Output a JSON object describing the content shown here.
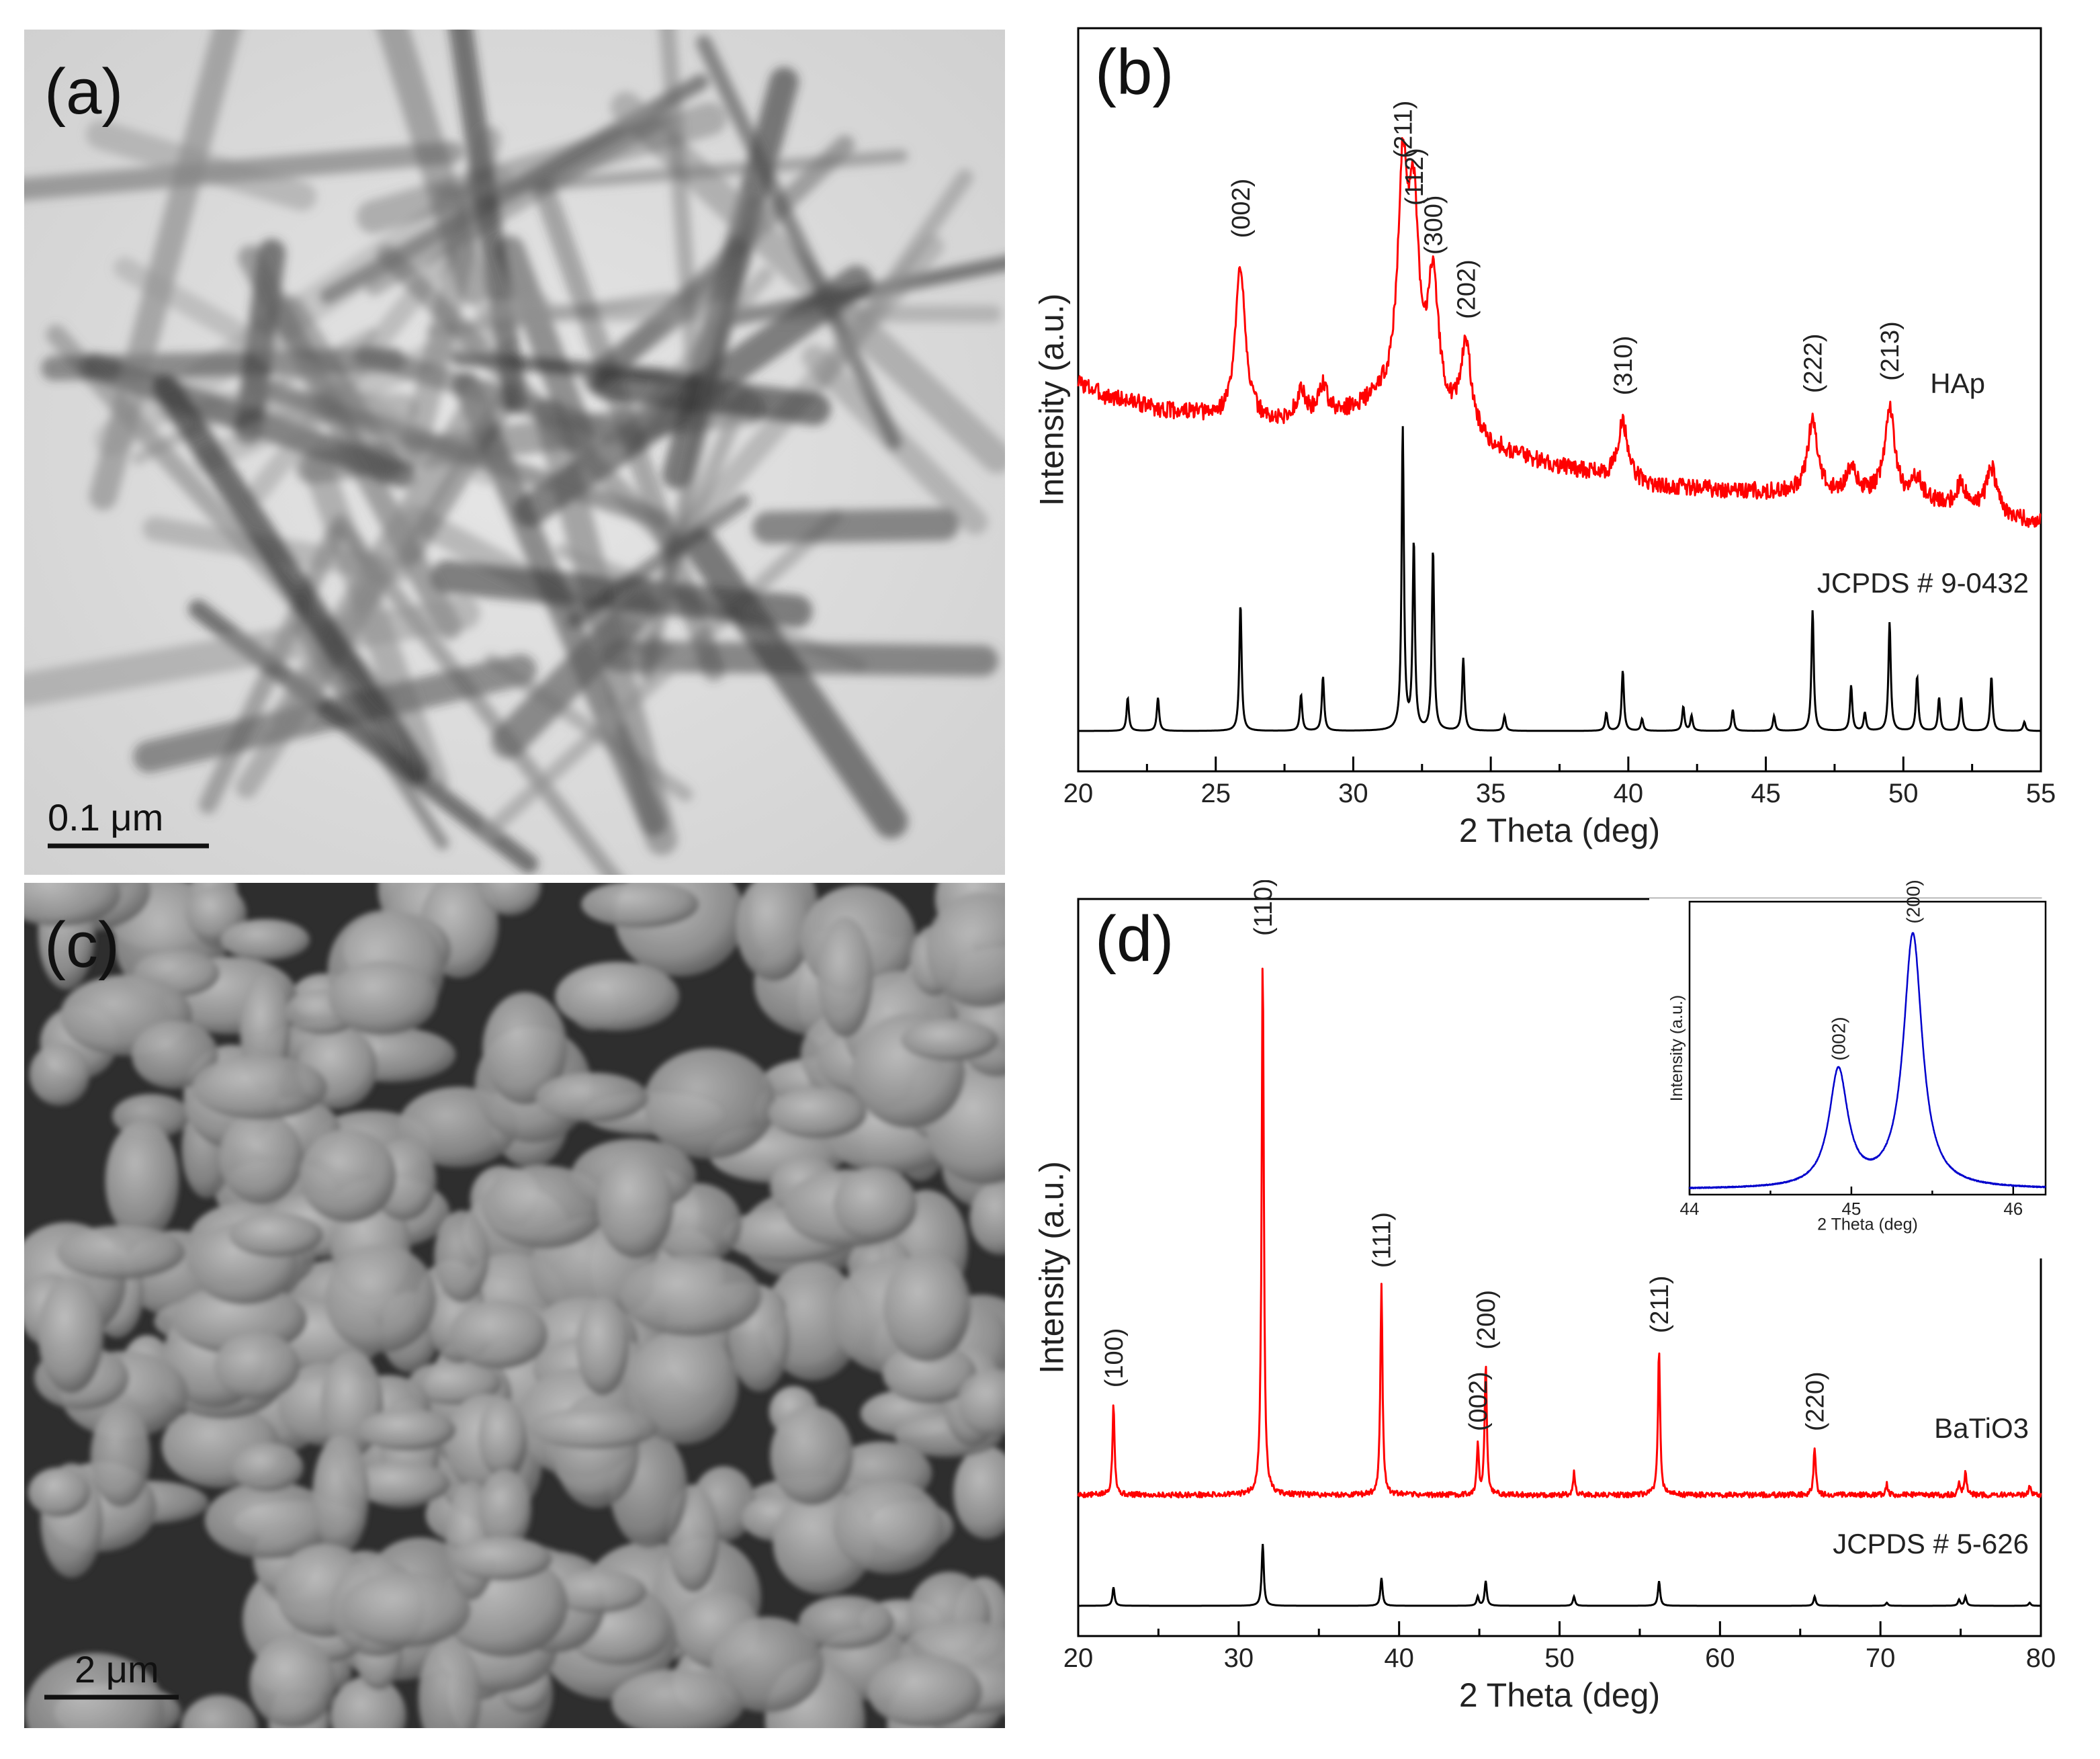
{
  "panels": {
    "a": {
      "label": "(a)",
      "scale_bar": "0.1 μm"
    },
    "c": {
      "label": "(c)",
      "scale_bar": "2 μm"
    }
  },
  "chart_data": [
    {
      "panel": "(b)",
      "type": "line",
      "xlabel": "2 Theta (deg)",
      "ylabel": "Intensity (a.u.)",
      "xlim": [
        20,
        55
      ],
      "xticks": [
        20,
        25,
        30,
        35,
        40,
        45,
        50,
        55
      ],
      "series": [
        {
          "name": "HAp",
          "color": "#ff0000",
          "baseline_points": [
            [
              20,
              0.55
            ],
            [
              21,
              0.5
            ],
            [
              22,
              0.48
            ],
            [
              23,
              0.45
            ],
            [
              24,
              0.44
            ],
            [
              25,
              0.42
            ],
            [
              27,
              0.4
            ],
            [
              29,
              0.41
            ],
            [
              31,
              0.48
            ],
            [
              33,
              0.44
            ],
            [
              35,
              0.32
            ],
            [
              37,
              0.26
            ],
            [
              39,
              0.22
            ],
            [
              41,
              0.18
            ],
            [
              43,
              0.17
            ],
            [
              45,
              0.16
            ],
            [
              47,
              0.15
            ],
            [
              49,
              0.14
            ],
            [
              51,
              0.12
            ],
            [
              53,
              0.09
            ],
            [
              55,
              0.05
            ]
          ],
          "peaks": [
            {
              "x": 25.9,
              "y": 0.55,
              "label": "(002)"
            },
            {
              "x": 28.1,
              "y": 0.1,
              "label": ""
            },
            {
              "x": 28.9,
              "y": 0.12,
              "label": ""
            },
            {
              "x": 31.8,
              "y": 0.78,
              "label": "(211)"
            },
            {
              "x": 32.2,
              "y": 0.62,
              "label": "(112)"
            },
            {
              "x": 32.9,
              "y": 0.46,
              "label": "(300)"
            },
            {
              "x": 34.1,
              "y": 0.3,
              "label": "(202)"
            },
            {
              "x": 39.8,
              "y": 0.2,
              "label": "(310)"
            },
            {
              "x": 46.7,
              "y": 0.26,
              "label": "(222)"
            },
            {
              "x": 48.1,
              "y": 0.1,
              "label": ""
            },
            {
              "x": 49.5,
              "y": 0.32,
              "label": "(213)"
            },
            {
              "x": 50.5,
              "y": 0.08,
              "label": ""
            },
            {
              "x": 52.1,
              "y": 0.08,
              "label": ""
            },
            {
              "x": 53.2,
              "y": 0.16,
              "label": ""
            }
          ]
        },
        {
          "name": "JCPDS # 9-0432",
          "color": "#000000",
          "stick_peaks": [
            [
              21.8,
              0.11
            ],
            [
              22.9,
              0.11
            ],
            [
              25.9,
              0.42
            ],
            [
              28.1,
              0.12
            ],
            [
              28.9,
              0.18
            ],
            [
              31.8,
              1.0
            ],
            [
              32.2,
              0.62
            ],
            [
              32.9,
              0.6
            ],
            [
              34.0,
              0.24
            ],
            [
              35.5,
              0.05
            ],
            [
              39.2,
              0.06
            ],
            [
              39.8,
              0.2
            ],
            [
              40.5,
              0.04
            ],
            [
              42.0,
              0.08
            ],
            [
              42.3,
              0.05
            ],
            [
              43.8,
              0.07
            ],
            [
              45.3,
              0.05
            ],
            [
              46.7,
              0.4
            ],
            [
              48.1,
              0.15
            ],
            [
              48.6,
              0.06
            ],
            [
              49.5,
              0.36
            ],
            [
              50.5,
              0.18
            ],
            [
              51.3,
              0.11
            ],
            [
              52.1,
              0.11
            ],
            [
              53.2,
              0.18
            ],
            [
              54.4,
              0.03
            ]
          ]
        }
      ]
    },
    {
      "panel": "(d)",
      "type": "line",
      "xlabel": "2 Theta (deg)",
      "ylabel": "Intensity (a.u.)",
      "xlim": [
        20,
        80
      ],
      "xticks": [
        20,
        30,
        40,
        50,
        60,
        70,
        80
      ],
      "series": [
        {
          "name": "BaTiO3",
          "color": "#ff0000",
          "peaks": [
            {
              "x": 22.2,
              "y": 0.17,
              "label": "(100)"
            },
            {
              "x": 31.5,
              "y": 1.0,
              "label": "(110)"
            },
            {
              "x": 38.9,
              "y": 0.39,
              "label": "(111)"
            },
            {
              "x": 44.9,
              "y": 0.09,
              "label": "(002)"
            },
            {
              "x": 45.4,
              "y": 0.24,
              "label": "(200)"
            },
            {
              "x": 50.9,
              "y": 0.04,
              "label": ""
            },
            {
              "x": 56.2,
              "y": 0.27,
              "label": "(211)"
            },
            {
              "x": 65.9,
              "y": 0.09,
              "label": "(220)"
            },
            {
              "x": 70.4,
              "y": 0.02,
              "label": ""
            },
            {
              "x": 74.9,
              "y": 0.02,
              "label": ""
            },
            {
              "x": 75.3,
              "y": 0.04,
              "label": ""
            },
            {
              "x": 79.3,
              "y": 0.02,
              "label": ""
            }
          ]
        },
        {
          "name": "JCPDS # 5-626",
          "color": "#000000",
          "stick_peaks": [
            [
              22.2,
              0.06
            ],
            [
              31.5,
              0.2
            ],
            [
              38.9,
              0.09
            ],
            [
              44.9,
              0.03
            ],
            [
              45.4,
              0.08
            ],
            [
              50.9,
              0.03
            ],
            [
              56.2,
              0.08
            ],
            [
              65.9,
              0.03
            ],
            [
              70.4,
              0.01
            ],
            [
              74.9,
              0.02
            ],
            [
              75.3,
              0.03
            ],
            [
              79.3,
              0.01
            ]
          ]
        }
      ],
      "inset": {
        "type": "line",
        "xlabel": "2 Theta (deg)",
        "ylabel": "Intensity (a.u.)",
        "xlim": [
          44,
          46.2
        ],
        "xticks": [
          44,
          45,
          46
        ],
        "series": [
          {
            "name": "",
            "color": "#0000cc",
            "peaks": [
              {
                "x": 44.92,
                "y": 0.45,
                "label": "(002)"
              },
              {
                "x": 45.38,
                "y": 0.98,
                "label": "(200)"
              }
            ]
          }
        ]
      }
    }
  ]
}
